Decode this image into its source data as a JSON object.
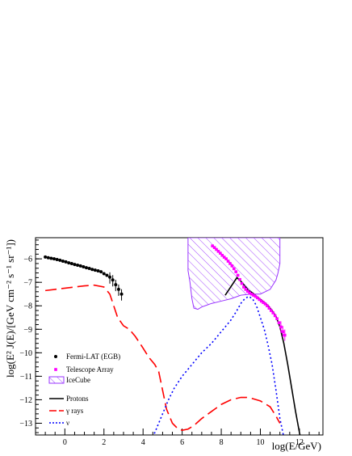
{
  "chart_data": {
    "type": "line",
    "title": "",
    "xlabel": "log(E/GeV)",
    "ylabel": "log(E² J(E)/[GeV cm⁻² s⁻¹ sr⁻¹])",
    "xlim": [
      -1.5,
      13.2
    ],
    "ylim": [
      -13.5,
      -5.1
    ],
    "x_ticks": [
      0,
      2,
      4,
      6,
      8,
      10,
      12
    ],
    "y_ticks": [
      -6,
      -7,
      -8,
      -9,
      -10,
      -11,
      -12,
      -13
    ],
    "x_tick_labels": [
      "0",
      "2",
      "4",
      "6",
      "8",
      "10",
      "12"
    ],
    "y_tick_labels": [
      "−6",
      "−7",
      "−8",
      "−9",
      "−10",
      "−11",
      "−12",
      "−13"
    ],
    "grid": false,
    "legend_position": "bottom-left",
    "legend": [
      "Fermi-LAT (EGB)",
      "Telescope Array",
      "IceCube",
      "Protons",
      "γ rays",
      "ν"
    ],
    "series": [
      {
        "name": "Fermi-LAT (EGB)",
        "kind": "points",
        "color": "#000000",
        "x": [
          -1.0,
          -0.85,
          -0.7,
          -0.55,
          -0.4,
          -0.25,
          -0.1,
          0.05,
          0.2,
          0.35,
          0.5,
          0.65,
          0.8,
          0.95,
          1.1,
          1.25,
          1.4,
          1.55,
          1.7,
          1.85,
          2.0,
          2.15,
          2.3,
          2.45,
          2.6,
          2.75,
          2.9
        ],
        "y": [
          -5.92,
          -5.95,
          -5.98,
          -6.0,
          -6.03,
          -6.06,
          -6.1,
          -6.13,
          -6.17,
          -6.2,
          -6.24,
          -6.27,
          -6.3,
          -6.34,
          -6.38,
          -6.41,
          -6.45,
          -6.48,
          -6.51,
          -6.55,
          -6.63,
          -6.7,
          -6.78,
          -6.9,
          -7.1,
          -7.3,
          -7.5
        ]
      },
      {
        "name": "Telescope Array",
        "kind": "points",
        "color": "#ff00ff",
        "x": [
          7.55,
          7.65,
          7.75,
          7.85,
          7.95,
          8.05,
          8.15,
          8.25,
          8.35,
          8.45,
          8.55,
          8.65,
          8.75,
          8.85,
          8.95,
          9.05,
          9.15,
          9.25,
          9.35,
          9.45,
          9.55,
          9.65,
          9.75,
          9.85,
          9.95,
          10.05,
          10.15,
          10.25,
          10.35,
          10.45,
          10.55,
          10.65,
          10.75,
          10.85,
          10.95,
          11.05,
          11.15,
          11.25
        ],
        "y": [
          -5.45,
          -5.52,
          -5.6,
          -5.68,
          -5.76,
          -5.85,
          -5.93,
          -6.0,
          -6.1,
          -6.2,
          -6.3,
          -6.42,
          -6.55,
          -6.7,
          -6.88,
          -7.05,
          -7.2,
          -7.3,
          -7.38,
          -7.45,
          -7.5,
          -7.55,
          -7.6,
          -7.66,
          -7.73,
          -7.8,
          -7.86,
          -7.92,
          -8.0,
          -8.1,
          -8.2,
          -8.3,
          -8.42,
          -8.55,
          -8.72,
          -8.9,
          -9.1,
          -9.25
        ]
      },
      {
        "name": "IceCube",
        "kind": "band",
        "color": "#9933ff",
        "x_upper": [
          6.3,
          11.0
        ],
        "y_upper": [
          -5.1,
          -5.1
        ],
        "x": [
          6.3,
          6.4,
          6.5,
          6.6,
          6.8,
          7.0,
          7.5,
          8.0,
          8.5,
          9.0,
          9.5,
          10.0,
          10.5,
          10.8,
          10.9,
          11.0
        ],
        "y": [
          -6.5,
          -7.0,
          -7.7,
          -8.1,
          -8.15,
          -8.05,
          -7.9,
          -7.8,
          -7.7,
          -7.55,
          -7.5,
          -7.5,
          -7.3,
          -6.9,
          -6.6,
          -6.2
        ]
      },
      {
        "name": "Protons",
        "kind": "line",
        "dash": "solid",
        "color": "#000000",
        "x": [
          8.2,
          8.4,
          8.6,
          8.8,
          9.0,
          9.2,
          9.4,
          9.6,
          9.8,
          10.0,
          10.2,
          10.4,
          10.6,
          10.8,
          11.0,
          11.2,
          11.4,
          11.6,
          11.8,
          12.0,
          12.1
        ],
        "y": [
          -7.55,
          -7.3,
          -7.05,
          -6.8,
          -6.95,
          -7.15,
          -7.35,
          -7.45,
          -7.6,
          -7.72,
          -7.85,
          -8.0,
          -8.2,
          -8.45,
          -8.9,
          -9.6,
          -10.5,
          -11.5,
          -12.5,
          -13.4,
          -13.8
        ]
      },
      {
        "name": "γ rays",
        "kind": "line",
        "dash": "long-dash",
        "color": "#ff0000",
        "x": [
          -1.0,
          -0.5,
          0.0,
          0.5,
          1.0,
          1.5,
          2.0,
          2.3,
          2.5,
          2.7,
          3.0,
          3.3,
          3.6,
          4.0,
          4.3,
          4.6,
          4.8,
          5.0,
          5.2,
          5.5,
          5.8,
          6.0,
          6.3,
          6.6,
          7.0,
          7.5,
          8.0,
          8.5,
          9.0,
          9.3,
          9.6,
          10.0,
          10.5,
          10.8,
          11.0
        ],
        "y": [
          -7.35,
          -7.3,
          -7.25,
          -7.2,
          -7.15,
          -7.12,
          -7.2,
          -7.5,
          -8.0,
          -8.5,
          -8.85,
          -9.0,
          -9.3,
          -9.8,
          -10.2,
          -10.5,
          -10.8,
          -11.6,
          -12.4,
          -13.0,
          -13.25,
          -13.3,
          -13.25,
          -13.1,
          -12.8,
          -12.5,
          -12.2,
          -12.0,
          -11.9,
          -11.9,
          -11.95,
          -12.05,
          -12.3,
          -12.7,
          -13.0
        ]
      },
      {
        "name": "ν",
        "kind": "line",
        "dash": "dotted",
        "color": "#0000ff",
        "x": [
          4.5,
          4.8,
          5.0,
          5.3,
          5.6,
          6.0,
          6.5,
          7.0,
          7.5,
          8.0,
          8.5,
          8.8,
          9.0,
          9.2,
          9.4,
          9.6,
          9.8,
          10.0,
          10.2,
          10.4,
          10.6,
          10.8,
          11.0,
          11.2
        ],
        "y": [
          -13.6,
          -13.0,
          -12.6,
          -12.0,
          -11.5,
          -11.0,
          -10.5,
          -10.0,
          -9.6,
          -9.1,
          -8.6,
          -8.2,
          -7.9,
          -7.7,
          -7.6,
          -7.7,
          -8.0,
          -8.5,
          -9.0,
          -9.7,
          -10.5,
          -11.6,
          -12.8,
          -13.6
        ]
      }
    ]
  }
}
